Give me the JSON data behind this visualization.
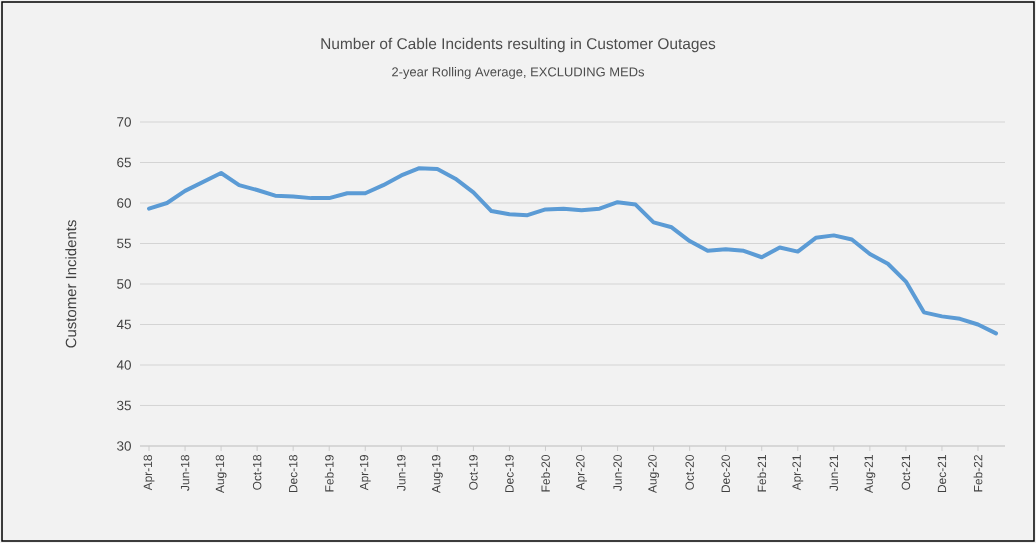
{
  "chart_data": {
    "type": "line",
    "title": "Number of Cable Incidents resulting in Customer Outages",
    "subtitle": "2-year Rolling Average, EXCLUDING MEDs",
    "ylabel": "Customer Incidents",
    "categories": [
      "Apr-18",
      null,
      "Jun-18",
      null,
      "Aug-18",
      null,
      "Oct-18",
      null,
      "Dec-18",
      null,
      "Feb-19",
      null,
      "Apr-19",
      null,
      "Jun-19",
      null,
      "Aug-19",
      null,
      "Oct-19",
      null,
      "Dec-19",
      null,
      "Feb-20",
      null,
      "Apr-20",
      null,
      "Jun-20",
      null,
      "Aug-20",
      null,
      "Oct-20",
      null,
      "Dec-20",
      null,
      "Feb-21",
      null,
      "Apr-21",
      null,
      "Jun-21",
      null,
      "Aug-21",
      null,
      "Oct-21",
      null,
      "Dec-21",
      null,
      "Feb-22",
      null
    ],
    "color": "#5b9bd5",
    "values": [
      59.3,
      60.0,
      61.5,
      62.6,
      63.7,
      62.2,
      61.6,
      60.9,
      60.8,
      60.6,
      60.6,
      61.2,
      61.2,
      62.2,
      63.4,
      64.3,
      64.2,
      63.0,
      61.3,
      59.0,
      58.6,
      58.5,
      59.2,
      59.3,
      59.1,
      59.3,
      60.1,
      59.8,
      57.6,
      57.0,
      55.3,
      54.1,
      54.3,
      54.1,
      53.3,
      54.5,
      54.0,
      55.7,
      56.0,
      55.5,
      53.7,
      52.5,
      50.3,
      46.5,
      46.0,
      45.7,
      45.0,
      43.9
    ],
    "ylim": [
      30,
      70
    ],
    "yticks": [
      30,
      35,
      40,
      45,
      50,
      55,
      60,
      65,
      70
    ],
    "grid": "y",
    "marker": "none",
    "line_style": "solid"
  }
}
